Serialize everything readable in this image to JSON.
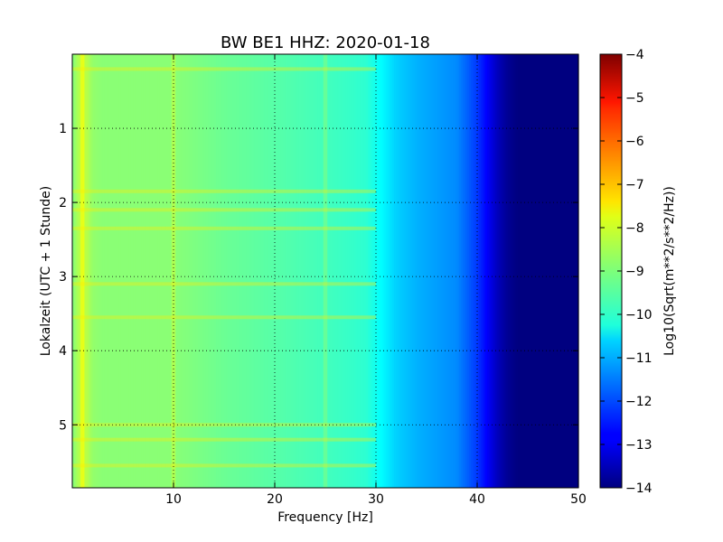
{
  "chart_data": {
    "type": "heatmap",
    "title": "BW BE1 HHZ: 2020-01-18",
    "xlabel": "Frequency [Hz]",
    "ylabel": "Lokalzeit (UTC + 1 Stunde)",
    "colorbar_label": "Log10(Sqrt(m**2/s**2/Hz))",
    "xlim": [
      0,
      50
    ],
    "ylim": [
      5.85,
      0
    ],
    "clim": [
      -14,
      -4
    ],
    "colormap": "jet",
    "grid": true,
    "x_ticks": [
      10,
      20,
      30,
      40,
      50
    ],
    "x_tick_labels": [
      "10",
      "20",
      "30",
      "40",
      "50"
    ],
    "y_ticks": [
      1,
      2,
      3,
      4,
      5
    ],
    "y_tick_labels": [
      "1",
      "2",
      "3",
      "4",
      "5"
    ],
    "colorbar_ticks": [
      -4,
      -5,
      -6,
      -7,
      -8,
      -9,
      -10,
      -11,
      -12,
      -13,
      -14
    ],
    "colorbar_tick_labels": [
      "−4",
      "−5",
      "−6",
      "−7",
      "−8",
      "−9",
      "−10",
      "−11",
      "−12",
      "−13",
      "−14"
    ],
    "spectrum_profile": {
      "frequency_hz": [
        0,
        0.5,
        1,
        1.5,
        2,
        3,
        5,
        8,
        10,
        15,
        20,
        25,
        29,
        30,
        31,
        32,
        34,
        36,
        38,
        39,
        40,
        41,
        42,
        43,
        44,
        50
      ],
      "log_amplitude": [
        -9.0,
        -8.6,
        -8.3,
        -8.5,
        -8.8,
        -8.9,
        -8.9,
        -8.9,
        -8.9,
        -9.2,
        -9.4,
        -9.6,
        -9.8,
        -10.1,
        -10.4,
        -10.7,
        -11.0,
        -11.2,
        -11.4,
        -11.8,
        -12.2,
        -12.8,
        -13.4,
        -13.8,
        -14.0,
        -14.0
      ]
    },
    "bright_bands_hour": [
      0.2,
      1.85,
      2.1,
      2.35,
      3.1,
      3.55,
      5.0,
      5.2,
      5.55
    ],
    "bright_lines_hz": [
      1,
      10,
      25
    ]
  }
}
